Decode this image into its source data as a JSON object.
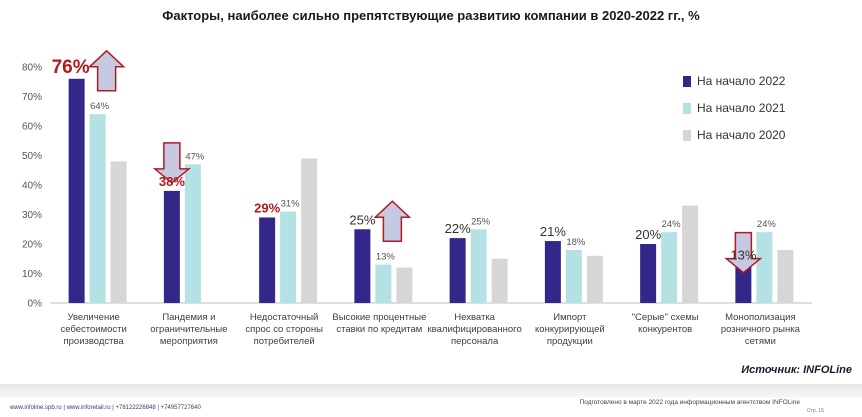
{
  "title": "Факторы, наиболее сильно препятствующие развитию компании в 2020-2022 гг., %",
  "source": "Источник: INFOLine",
  "footer": {
    "left": "www.infoline.spb.ru | www.inforetail.ru | +78122226848 | +74957727640",
    "right": "Подготовлено в марте 2022 года информационным агентством INFOLine",
    "page": "Стр. 15"
  },
  "colors": {
    "series_2022": "#33288a",
    "series_2021": "#b4e1e4",
    "series_2020": "#d6d6d6",
    "highlight_text": "#b3191f",
    "arrow_fill": "#c5c9e2",
    "arrow_stroke": "#b3191f"
  },
  "chart_data": {
    "type": "bar",
    "categories": [
      "Увеличение себестоимости производства",
      "Пандемия и ограничительные мероприятия",
      "Недостаточный спрос со стороны потребителей",
      "Высокие процентные ставки по кредитам",
      "Нехватка квалифицированного персонала",
      "Импорт конкурирующей продукции",
      "\"Серые\" схемы конкурентов",
      "Монополизация розничного рынка сетями"
    ],
    "category_lines": [
      [
        "Увеличение",
        "себестоимости",
        "производства"
      ],
      [
        "Пандемия и",
        "ограничительные",
        "мероприятия"
      ],
      [
        "Недостаточный",
        "спрос со стороны",
        "потребителей"
      ],
      [
        "Высокие процентные",
        "ставки по кредитам"
      ],
      [
        "Нехватка",
        "квалифицированного",
        "персонала"
      ],
      [
        "Импорт",
        "конкурирующей",
        "продукции"
      ],
      [
        "\"Серые\" схемы",
        "конкурентов"
      ],
      [
        "Монополизация",
        "розничного рынка",
        "сетями"
      ]
    ],
    "series": [
      {
        "name": "На начало 2022",
        "values": [
          76,
          38,
          29,
          25,
          22,
          21,
          20,
          13
        ]
      },
      {
        "name": "На начало 2021",
        "values": [
          64,
          47,
          31,
          13,
          25,
          18,
          24,
          24
        ]
      },
      {
        "name": "На начало 2020",
        "values": [
          48,
          null,
          49,
          12,
          15,
          16,
          33,
          18
        ]
      }
    ],
    "data_labels_2022": [
      "76%",
      "38%",
      "29%",
      "25%",
      "22%",
      "21%",
      "20%",
      "13%"
    ],
    "data_labels_2021": [
      "64%",
      "47%",
      "31%",
      "13%",
      "25%",
      "18%",
      "24%",
      "24%"
    ],
    "label_emphasis_2022": [
      "highlight",
      "highlight",
      "highlight",
      "normal",
      "normal",
      "normal",
      "normal",
      "normal"
    ],
    "arrows": [
      {
        "category_index": 0,
        "direction": "up"
      },
      {
        "category_index": 1,
        "direction": "down"
      },
      {
        "category_index": 3,
        "direction": "up"
      },
      {
        "category_index": 7,
        "direction": "down"
      }
    ],
    "ylim": [
      0,
      80
    ],
    "yticks": [
      0,
      10,
      20,
      30,
      40,
      50,
      60,
      70,
      80
    ],
    "ytick_labels": [
      "0%",
      "10%",
      "20%",
      "30%",
      "40%",
      "50%",
      "60%",
      "70%",
      "80%"
    ],
    "grid": false,
    "legend_position": "top-right"
  }
}
